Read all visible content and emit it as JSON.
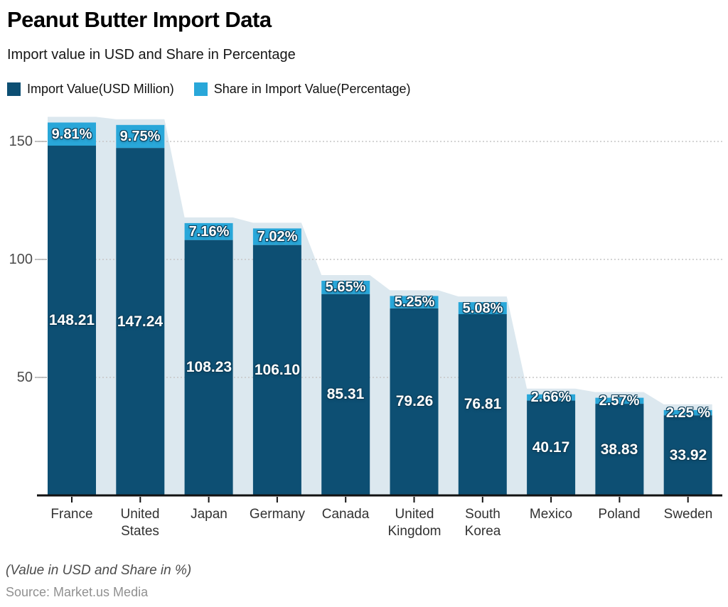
{
  "header": {
    "title": "Peanut Butter Import Data",
    "subtitle": "Import value in USD and Share in Percentage"
  },
  "legend": [
    {
      "label": "Import Value(USD Million)",
      "color": "#0d4f73"
    },
    {
      "label": "Share in Import Value(Percentage)",
      "color": "#29a7d9"
    }
  ],
  "footer": {
    "note": "(Value in USD and Share in %)",
    "source": "Source: Market.us Media"
  },
  "chart_data": {
    "type": "bar",
    "stacked": true,
    "title": "Peanut Butter Import Data",
    "subtitle": "Import value in USD and Share in Percentage",
    "categories": [
      "France",
      "United States",
      "Japan",
      "Germany",
      "Canada",
      "United Kingdom",
      "South Korea",
      "Mexico",
      "Poland",
      "Sweden"
    ],
    "series": [
      {
        "name": "Import Value(USD Million)",
        "color": "#0d4f73",
        "values": [
          148.21,
          147.24,
          108.23,
          106.1,
          85.31,
          79.26,
          76.81,
          40.17,
          38.83,
          33.92
        ],
        "labels": [
          "148.21",
          "147.24",
          "108.23",
          "106.10",
          "85.31",
          "79.26",
          "76.81",
          "40.17",
          "38.83",
          "33.92"
        ]
      },
      {
        "name": "Share in Import Value(Percentage)",
        "color": "#29a7d9",
        "values": [
          9.81,
          9.75,
          7.16,
          7.02,
          5.65,
          5.25,
          5.08,
          2.66,
          2.57,
          2.25
        ],
        "labels": [
          "9.81%",
          "9.75%",
          "7.16%",
          "7.02%",
          "5.65%",
          "5.25%",
          "5.08%",
          "2.66%",
          "2.57%",
          "2.25 %"
        ]
      }
    ],
    "y_ticks": [
      50,
      100,
      150
    ],
    "ylim": [
      0,
      162
    ],
    "grid": true,
    "legend_position": "top",
    "colors": {
      "bar": "#0d4f73",
      "cap": "#29a7d9",
      "band": "#dce8ef",
      "grid": "#c6c6c6",
      "grid_stub": "#b0b0b0",
      "axis": "#121212"
    }
  }
}
